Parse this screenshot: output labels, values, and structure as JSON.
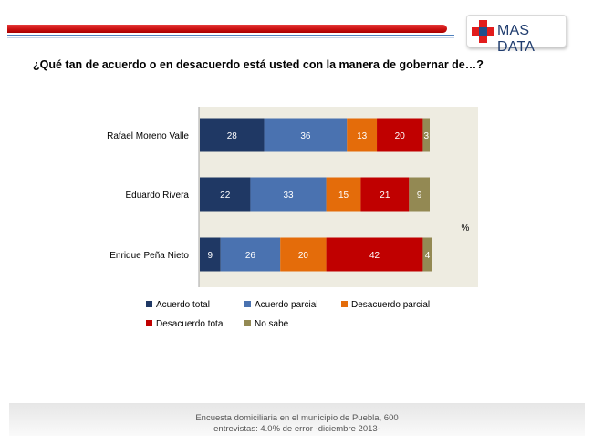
{
  "brand": {
    "name": "MAS DATA"
  },
  "question": "¿Qué tan de acuerdo o en desacuerdo está usted con la manera de gobernar de…?",
  "footer": {
    "line1": "Encuesta domiciliaria en el municipio de Puebla, 600",
    "line2": "entrevistas: 4.0% de error -diciembre 2013-"
  },
  "chart_data": {
    "type": "bar",
    "orientation": "horizontal",
    "stacked": true,
    "unit_label": "%",
    "categories": [
      "Rafael Moreno Valle",
      "Eduardo Rivera",
      "Enrique Peña Nieto"
    ],
    "series": [
      {
        "name": "Acuerdo total",
        "color": "#1f3864",
        "values": [
          28,
          22,
          9
        ]
      },
      {
        "name": "Acuerdo parcial",
        "color": "#4a72b0",
        "values": [
          36,
          33,
          26
        ]
      },
      {
        "name": "Desacuerdo parcial",
        "color": "#e46c0a",
        "values": [
          13,
          15,
          20
        ]
      },
      {
        "name": "Desacuerdo total",
        "color": "#c00000",
        "values": [
          20,
          21,
          42
        ]
      },
      {
        "name": "No sabe",
        "color": "#938953",
        "values": [
          3,
          9,
          4
        ]
      }
    ],
    "xlim": [
      0,
      100
    ],
    "grid": false,
    "plot_background": "#eeece1",
    "legend_position": "bottom"
  }
}
